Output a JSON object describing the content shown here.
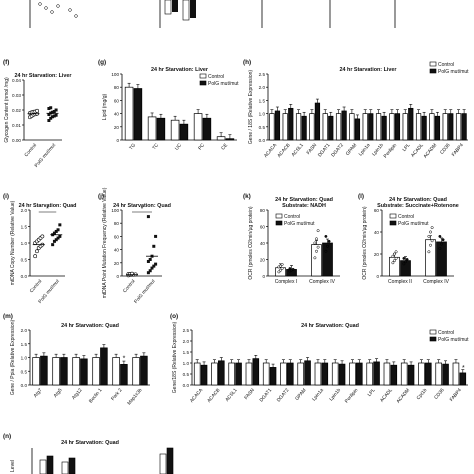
{
  "chart_data": [
    {
      "id": "f",
      "panel_label": "(f)",
      "type": "scatter",
      "title": "24 hr Starvation: Liver",
      "ylabel": "Glycogen Content (nmol /mg)",
      "ylim": [
        0,
        0.04
      ],
      "yticks": [
        "0.00",
        "0.01",
        "0.02",
        "0.03",
        "0.04"
      ],
      "categories": [
        "Control",
        "PolG mut/mut"
      ],
      "series": [
        {
          "name": "Control",
          "values": [
            0.0152,
            0.016,
            0.0168,
            0.0172,
            0.0175,
            0.018,
            0.0185,
            0.0188,
            0.019,
            0.0195
          ],
          "mean": 0.0175
        },
        {
          "name": "PolG mut/mut",
          "values": [
            0.013,
            0.0145,
            0.0155,
            0.016,
            0.0165,
            0.017,
            0.018,
            0.0185,
            0.019,
            0.02,
            0.021,
            0.0215
          ],
          "mean": 0.0178
        }
      ]
    },
    {
      "id": "g",
      "panel_label": "(g)",
      "type": "bar",
      "title": "24 hr Starvation: Liver",
      "ylabel": "Lipid (mg/g)",
      "ylim": [
        0,
        100
      ],
      "yticks": [
        "0",
        "20",
        "40",
        "60",
        "80",
        "100"
      ],
      "categories": [
        "TG",
        "TC",
        "UC",
        "PC",
        "CE"
      ],
      "series": [
        {
          "name": "Control",
          "values": [
            80,
            35,
            30,
            40,
            5
          ]
        },
        {
          "name": "PolG mut/mut",
          "values": [
            78,
            33,
            24,
            33,
            2
          ]
        }
      ],
      "legend": "top-right"
    },
    {
      "id": "h",
      "panel_label": "(h)",
      "type": "bar",
      "title": "24 hr Starvation: Liver",
      "ylabel": "Gene / 18S (Relative Expression)",
      "ylim": [
        0,
        2.5
      ],
      "yticks": [
        "0.0",
        "0.5",
        "1.0",
        "1.5",
        "2.0",
        "2.5"
      ],
      "categories": [
        "ACACA",
        "ACACB",
        "ACSL1",
        "FASN",
        "DGAT1",
        "DGAT2",
        "GPAM",
        "Lpin1a",
        "Lpin1b",
        "Perilipin",
        "LPL",
        "ACADL",
        "ACADM",
        "CD36",
        "FABP4"
      ],
      "series": [
        {
          "name": "Control",
          "values": [
            1.0,
            1.0,
            1.0,
            1.0,
            1.0,
            1.0,
            1.0,
            1.0,
            1.0,
            1.0,
            1.0,
            1.0,
            1.0,
            1.0,
            1.0
          ]
        },
        {
          "name": "PolG mut/mut",
          "values": [
            1.1,
            1.2,
            0.9,
            1.4,
            0.9,
            1.1,
            0.8,
            1.0,
            0.9,
            1.0,
            1.2,
            0.9,
            0.9,
            1.0,
            1.0
          ]
        }
      ],
      "legend": "top-right"
    },
    {
      "id": "i",
      "panel_label": "(i)",
      "type": "scatter",
      "title": "24 hr Starvation: Quad",
      "ylabel": "mtDNA Copy Number (Relative Value)",
      "ylim": [
        0,
        2.0
      ],
      "yticks": [
        "0.0",
        "0.5",
        "1.0",
        "1.5",
        "2.0"
      ],
      "categories": [
        "Control",
        "PolG mut/mut"
      ],
      "series": [
        {
          "name": "Control",
          "values": [
            0.6,
            0.75,
            0.85,
            0.9,
            0.95,
            1.0,
            1.05,
            1.1,
            1.15,
            1.2
          ],
          "mean": 0.95
        },
        {
          "name": "PolG mut/mut",
          "values": [
            0.95,
            1.05,
            1.1,
            1.15,
            1.2,
            1.25,
            1.3,
            1.35,
            1.4,
            1.55
          ],
          "mean": 1.25
        }
      ],
      "annotations": [
        "*"
      ]
    },
    {
      "id": "j",
      "panel_label": "(j)",
      "type": "scatter",
      "title": "24 hr Starvation: Quad",
      "ylabel": "mtDNA Point Mutation Frequency (Relative Value)",
      "ylim": [
        0,
        100
      ],
      "yticks": [
        "0",
        "20",
        "40",
        "60",
        "80",
        "100"
      ],
      "categories": [
        "Control",
        "PolG mut/mut"
      ],
      "series": [
        {
          "name": "Control",
          "values": [
            1,
            1.5,
            2,
            2,
            2.5,
            3,
            3,
            3.5
          ],
          "mean": 2
        },
        {
          "name": "PolG mut/mut",
          "values": [
            5,
            8,
            12,
            15,
            18,
            22,
            25,
            30,
            45,
            60,
            90
          ],
          "mean": 30
        }
      ],
      "annotations": [
        "*"
      ]
    },
    {
      "id": "k",
      "panel_label": "(k)",
      "type": "bar",
      "title": "24 hr Starvation: Quad",
      "subtitle": "Substrate: NADH",
      "ylabel": "OCR (pmoles O2/min/µg protein)",
      "ylim": [
        0,
        80
      ],
      "yticks": [
        "0",
        "20",
        "40",
        "60",
        "80"
      ],
      "categories": [
        "Complex I",
        "Complex IV"
      ],
      "series": [
        {
          "name": "Control",
          "values": [
            10,
            38
          ],
          "points": [
            [
              5,
              7,
              9,
              11,
              12,
              14
            ],
            [
              22,
              30,
              35,
              40,
              45,
              55
            ]
          ]
        },
        {
          "name": "PolG mut/mut",
          "values": [
            8,
            40
          ],
          "points": [
            [
              6,
              7,
              8,
              9
            ],
            [
              30,
              36,
              42,
              48
            ]
          ]
        }
      ],
      "legend": "top-left"
    },
    {
      "id": "l",
      "panel_label": "(l)",
      "type": "bar",
      "title": "24 hr Starvation: Quad",
      "subtitle": "Substrate: Succinate+Rotenone",
      "ylabel": "OCR (pmoles O2/min/µg protein)",
      "ylim": [
        0,
        60
      ],
      "yticks": [
        "0",
        "20",
        "40",
        "60"
      ],
      "categories": [
        "Complex II",
        "Complex IV"
      ],
      "series": [
        {
          "name": "Control",
          "values": [
            17,
            33
          ],
          "points": [
            [
              12,
              14,
              16,
              18,
              20,
              22
            ],
            [
              22,
              28,
              32,
              36,
              40,
              44
            ]
          ]
        },
        {
          "name": "PolG mut/mut",
          "values": [
            14,
            31
          ],
          "points": [
            [
              11,
              13,
              15,
              16
            ],
            [
              25,
              29,
              33,
              36
            ]
          ]
        }
      ],
      "legend": "top-left"
    },
    {
      "id": "m",
      "panel_label": "(m)",
      "type": "bar",
      "title": "24 hr Starvation: Quad",
      "ylabel": "Gene / Ppia (Relative Expression)",
      "ylim": [
        0,
        2.0
      ],
      "yticks": [
        "0.0",
        "0.5",
        "1.0",
        "1.5",
        "2.0"
      ],
      "categories": [
        "Atg7",
        "Atg5",
        "Atg12",
        "Beclin 1",
        "Park 2",
        "Map1c3b"
      ],
      "series": [
        {
          "name": "Control",
          "values": [
            1.0,
            1.0,
            1.0,
            1.0,
            1.0,
            1.0
          ]
        },
        {
          "name": "PolG mut/mut",
          "values": [
            1.05,
            1.0,
            0.95,
            1.35,
            0.75,
            1.05
          ]
        }
      ]
    },
    {
      "id": "o",
      "panel_label": "(o)",
      "type": "bar",
      "title": "24 hr Starvation: Quad",
      "ylabel": "Gene/18S (Relative Expression)",
      "ylim": [
        0,
        2.5
      ],
      "yticks": [
        "0.0",
        "0.5",
        "1.0",
        "1.5",
        "2.0",
        "2.5"
      ],
      "categories": [
        "ACACA",
        "ACACB",
        "ACSL1",
        "FASN",
        "DGAT1",
        "DGAT2",
        "GPAM",
        "Lpin1a",
        "Lpin1b",
        "Perilipin",
        "LPL",
        "ACADL",
        "ACADM",
        "Cpt1b",
        "CD36",
        "FABP4"
      ],
      "series": [
        {
          "name": "Control",
          "values": [
            1.0,
            1.0,
            1.0,
            1.0,
            1.0,
            1.0,
            1.0,
            1.0,
            1.0,
            1.0,
            1.0,
            1.0,
            1.0,
            1.0,
            1.0,
            1.0
          ]
        },
        {
          "name": "PolG mut/mut",
          "values": [
            0.9,
            1.1,
            1.0,
            1.2,
            0.8,
            1.0,
            1.1,
            1.0,
            0.95,
            1.0,
            1.05,
            0.9,
            0.9,
            1.0,
            0.95,
            0.55
          ]
        }
      ],
      "annotations": [
        "*"
      ],
      "legend": "top-right"
    },
    {
      "id": "n",
      "panel_label": "(n)",
      "type": "bar",
      "title": "24 hr Starvation: Quad",
      "ylabel": "Level"
    }
  ]
}
